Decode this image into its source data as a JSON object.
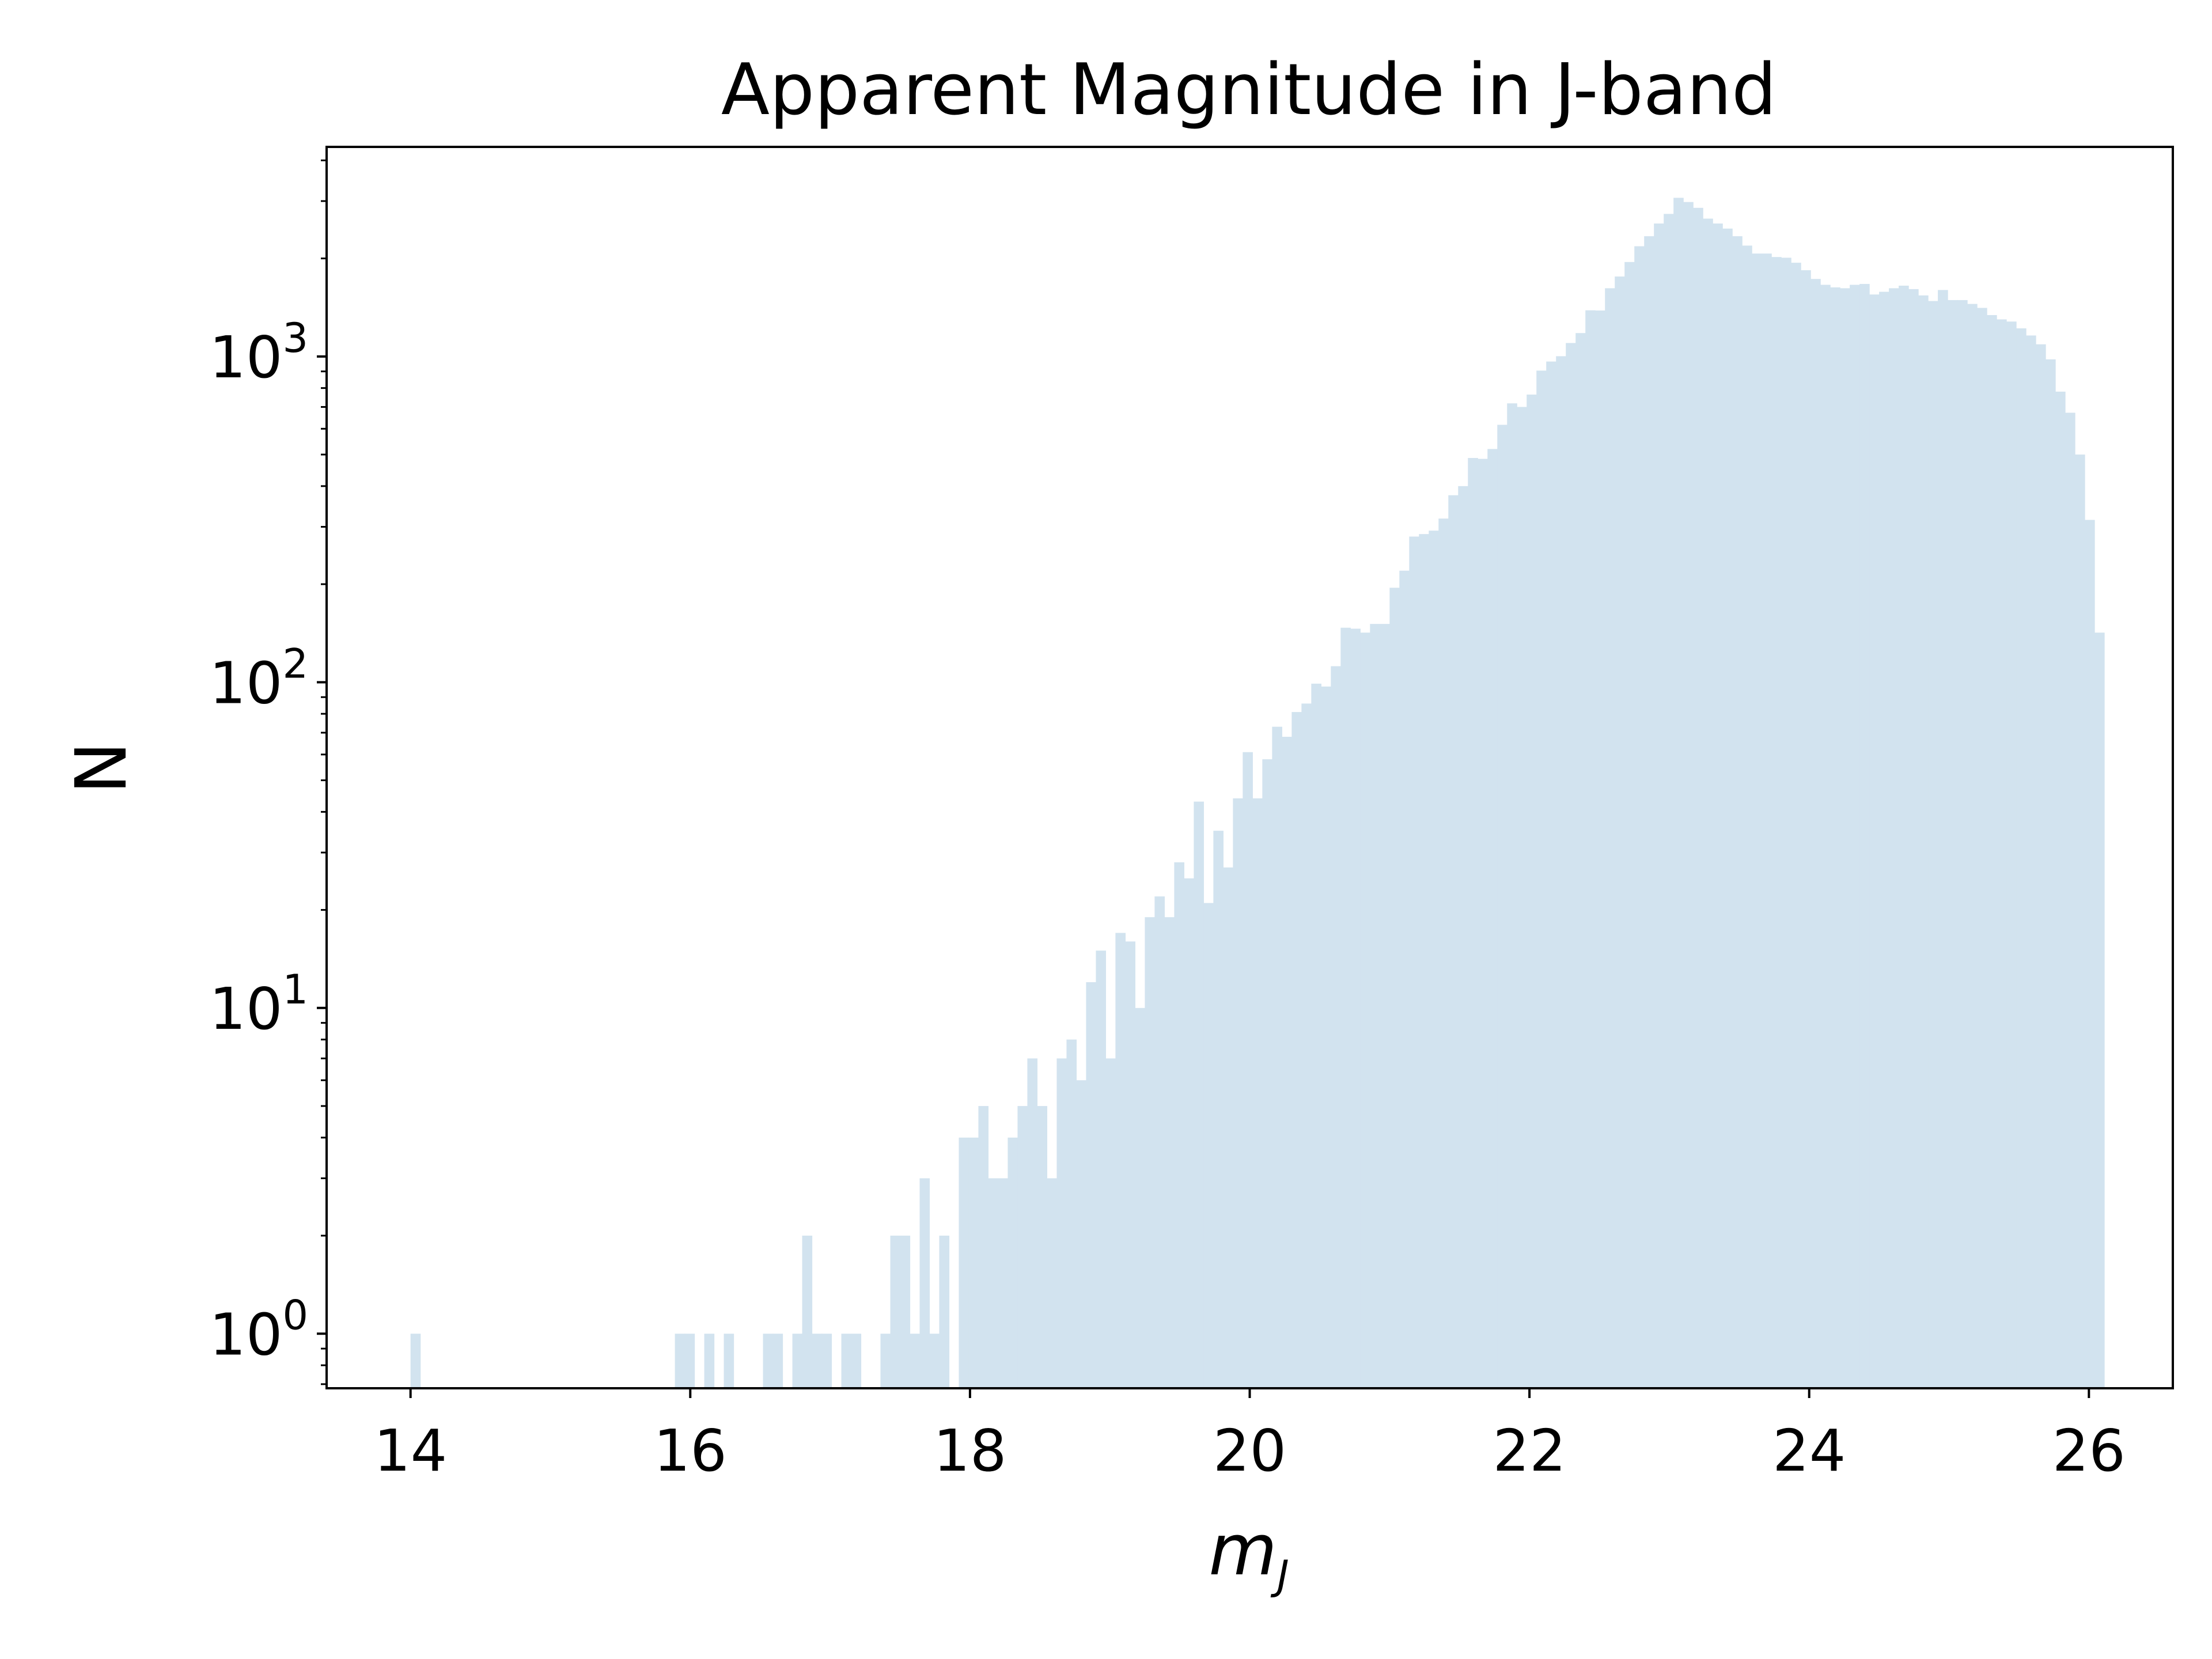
{
  "chart_data": {
    "type": "bar",
    "title": "Apparent Magnitude in J-band",
    "xlabel": "m_J",
    "xlabel_main": "m",
    "xlabel_sub": "J",
    "ylabel": "N",
    "y_scale": "log",
    "xlim": [
      13.4,
      26.6
    ],
    "ylim": [
      0.68,
      4400
    ],
    "grid": false,
    "legend": "none",
    "bar_color": "#d2e3ef",
    "x_ticks": [
      "14",
      "16",
      "18",
      "20",
      "22",
      "24",
      "26"
    ],
    "y_ticks": [
      {
        "base": "10",
        "exp": "0"
      },
      {
        "base": "10",
        "exp": "1"
      },
      {
        "base": "10",
        "exp": "2"
      },
      {
        "base": "10",
        "exp": "3"
      }
    ],
    "bin_width": 0.07,
    "bins": [
      {
        "x": 14.0,
        "y": 1
      },
      {
        "x": 15.89,
        "y": 1
      },
      {
        "x": 15.96,
        "y": 1
      },
      {
        "x": 16.1,
        "y": 1
      },
      {
        "x": 16.24,
        "y": 1
      },
      {
        "x": 16.52,
        "y": 1
      },
      {
        "x": 16.59,
        "y": 1
      },
      {
        "x": 16.73,
        "y": 1
      },
      {
        "x": 16.8,
        "y": 2
      },
      {
        "x": 16.87,
        "y": 1
      },
      {
        "x": 16.94,
        "y": 1
      },
      {
        "x": 17.08,
        "y": 1
      },
      {
        "x": 17.15,
        "y": 1
      },
      {
        "x": 17.36,
        "y": 1
      },
      {
        "x": 17.43,
        "y": 2
      },
      {
        "x": 17.5,
        "y": 2
      },
      {
        "x": 17.57,
        "y": 1
      },
      {
        "x": 17.64,
        "y": 3
      },
      {
        "x": 17.71,
        "y": 1
      },
      {
        "x": 17.78,
        "y": 2
      },
      {
        "x": 17.92,
        "y": 4
      },
      {
        "x": 17.99,
        "y": 4
      },
      {
        "x": 18.06,
        "y": 5
      },
      {
        "x": 18.13,
        "y": 3
      },
      {
        "x": 18.2,
        "y": 3
      },
      {
        "x": 18.27,
        "y": 4
      },
      {
        "x": 18.34,
        "y": 5
      },
      {
        "x": 18.41,
        "y": 7
      },
      {
        "x": 18.48,
        "y": 5
      },
      {
        "x": 18.55,
        "y": 3
      },
      {
        "x": 18.62,
        "y": 7
      },
      {
        "x": 18.69,
        "y": 8
      },
      {
        "x": 18.76,
        "y": 6
      },
      {
        "x": 18.83,
        "y": 12
      },
      {
        "x": 18.9,
        "y": 15
      },
      {
        "x": 18.97,
        "y": 7
      },
      {
        "x": 19.04,
        "y": 17
      },
      {
        "x": 19.11,
        "y": 16
      },
      {
        "x": 19.18,
        "y": 10
      },
      {
        "x": 19.25,
        "y": 19
      },
      {
        "x": 19.32,
        "y": 22
      },
      {
        "x": 19.39,
        "y": 19
      },
      {
        "x": 19.46,
        "y": 28
      },
      {
        "x": 19.53,
        "y": 25
      },
      {
        "x": 19.6,
        "y": 43
      },
      {
        "x": 19.67,
        "y": 21
      },
      {
        "x": 19.74,
        "y": 35
      },
      {
        "x": 19.81,
        "y": 27
      },
      {
        "x": 19.88,
        "y": 44
      },
      {
        "x": 19.95,
        "y": 61
      },
      {
        "x": 20.02,
        "y": 44
      },
      {
        "x": 20.09,
        "y": 58
      },
      {
        "x": 20.16,
        "y": 73
      },
      {
        "x": 20.23,
        "y": 68
      },
      {
        "x": 20.3,
        "y": 81
      },
      {
        "x": 20.37,
        "y": 86
      },
      {
        "x": 20.44,
        "y": 99
      },
      {
        "x": 20.51,
        "y": 97
      },
      {
        "x": 20.58,
        "y": 112
      },
      {
        "x": 20.65,
        "y": 147
      },
      {
        "x": 20.72,
        "y": 146
      },
      {
        "x": 20.79,
        "y": 142
      },
      {
        "x": 20.86,
        "y": 151
      },
      {
        "x": 20.93,
        "y": 151
      },
      {
        "x": 21.0,
        "y": 195
      },
      {
        "x": 21.07,
        "y": 220
      },
      {
        "x": 21.14,
        "y": 280
      },
      {
        "x": 21.21,
        "y": 285
      },
      {
        "x": 21.28,
        "y": 292
      },
      {
        "x": 21.35,
        "y": 318
      },
      {
        "x": 21.42,
        "y": 375
      },
      {
        "x": 21.49,
        "y": 400
      },
      {
        "x": 21.56,
        "y": 488
      },
      {
        "x": 21.63,
        "y": 485
      },
      {
        "x": 21.7,
        "y": 520
      },
      {
        "x": 21.77,
        "y": 617
      },
      {
        "x": 21.84,
        "y": 718
      },
      {
        "x": 21.91,
        "y": 700
      },
      {
        "x": 21.98,
        "y": 764
      },
      {
        "x": 22.05,
        "y": 905
      },
      {
        "x": 22.12,
        "y": 965
      },
      {
        "x": 22.19,
        "y": 1002
      },
      {
        "x": 22.26,
        "y": 1100
      },
      {
        "x": 22.33,
        "y": 1180
      },
      {
        "x": 22.4,
        "y": 1386
      },
      {
        "x": 22.47,
        "y": 1384
      },
      {
        "x": 22.54,
        "y": 1620
      },
      {
        "x": 22.61,
        "y": 1760
      },
      {
        "x": 22.68,
        "y": 1950
      },
      {
        "x": 22.75,
        "y": 2180
      },
      {
        "x": 22.82,
        "y": 2340
      },
      {
        "x": 22.89,
        "y": 2560
      },
      {
        "x": 22.96,
        "y": 2740
      },
      {
        "x": 23.03,
        "y": 3070
      },
      {
        "x": 23.1,
        "y": 2980
      },
      {
        "x": 23.17,
        "y": 2860
      },
      {
        "x": 23.24,
        "y": 2650
      },
      {
        "x": 23.31,
        "y": 2560
      },
      {
        "x": 23.38,
        "y": 2470
      },
      {
        "x": 23.45,
        "y": 2340
      },
      {
        "x": 23.52,
        "y": 2190
      },
      {
        "x": 23.59,
        "y": 2070
      },
      {
        "x": 23.66,
        "y": 2070
      },
      {
        "x": 23.73,
        "y": 2020
      },
      {
        "x": 23.8,
        "y": 2010
      },
      {
        "x": 23.87,
        "y": 1940
      },
      {
        "x": 23.94,
        "y": 1840
      },
      {
        "x": 24.01,
        "y": 1730
      },
      {
        "x": 24.08,
        "y": 1660
      },
      {
        "x": 24.15,
        "y": 1630
      },
      {
        "x": 24.22,
        "y": 1620
      },
      {
        "x": 24.29,
        "y": 1660
      },
      {
        "x": 24.36,
        "y": 1670
      },
      {
        "x": 24.43,
        "y": 1550
      },
      {
        "x": 24.5,
        "y": 1580
      },
      {
        "x": 24.57,
        "y": 1620
      },
      {
        "x": 24.64,
        "y": 1650
      },
      {
        "x": 24.71,
        "y": 1610
      },
      {
        "x": 24.78,
        "y": 1540
      },
      {
        "x": 24.85,
        "y": 1480
      },
      {
        "x": 24.92,
        "y": 1600
      },
      {
        "x": 24.99,
        "y": 1490
      },
      {
        "x": 25.06,
        "y": 1490
      },
      {
        "x": 25.13,
        "y": 1450
      },
      {
        "x": 25.2,
        "y": 1410
      },
      {
        "x": 25.27,
        "y": 1340
      },
      {
        "x": 25.34,
        "y": 1300
      },
      {
        "x": 25.41,
        "y": 1280
      },
      {
        "x": 25.48,
        "y": 1220
      },
      {
        "x": 25.55,
        "y": 1160
      },
      {
        "x": 25.62,
        "y": 1090
      },
      {
        "x": 25.69,
        "y": 980
      },
      {
        "x": 25.76,
        "y": 780
      },
      {
        "x": 25.83,
        "y": 672
      },
      {
        "x": 25.9,
        "y": 500
      },
      {
        "x": 25.97,
        "y": 315
      },
      {
        "x": 26.04,
        "y": 142
      }
    ]
  }
}
